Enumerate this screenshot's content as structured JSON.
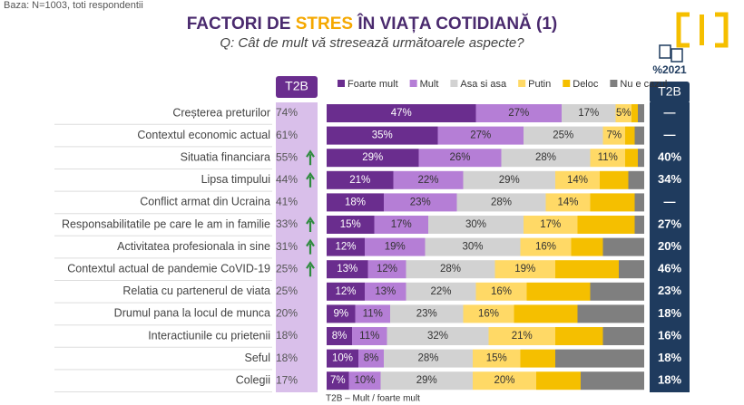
{
  "chart_data": {
    "type": "stacked-bar-horizontal",
    "base_note": "Baza: N=1003, toti respondentii",
    "title_parts": [
      "FACTORI DE ",
      "STRES",
      " ÎN VIAȚA COTIDIANĂ (1)"
    ],
    "title_highlight": 1,
    "subtitle": "Q: Cât de mult vă stresează următoarele aspecte?",
    "footnote": "T2B – Mult / foarte mult",
    "xlim": [
      0,
      100
    ],
    "categories": [
      "Creșterea preturilor",
      "Contextul economic actual",
      "Situatia financiara",
      "Lipsa timpului",
      "Conflict armat din Ucraina",
      "Responsabilitatile pe care le am in familie",
      "Activitatea profesionala in sine",
      "Contextul actual de pandemie CoVID-19",
      "Relatia cu partenerul de viata",
      "Drumul pana la locul de munca",
      "Interactiunile cu prietenii",
      "Seful",
      "Colegii"
    ],
    "series": [
      {
        "name": "Foarte mult",
        "color": "#6a2d8e",
        "text_color": "#ffffff",
        "values": [
          47,
          35,
          29,
          21,
          18,
          15,
          12,
          13,
          12,
          9,
          8,
          10,
          7
        ],
        "value_labels": [
          "47%",
          "35%",
          "29%",
          "21%",
          "18%",
          "15%",
          "12%",
          "13%",
          "12%",
          "9%",
          "8%",
          "10%",
          "7%"
        ]
      },
      {
        "name": "Mult",
        "color": "#b57ed6",
        "text_color": "#333333",
        "values": [
          27,
          27,
          26,
          22,
          23,
          17,
          19,
          12,
          13,
          11,
          11,
          8,
          10
        ],
        "value_labels": [
          "27%",
          "27%",
          "26%",
          "22%",
          "23%",
          "17%",
          "19%",
          "12%",
          "13%",
          "11%",
          "11%",
          "8%",
          "10%"
        ]
      },
      {
        "name": "Asa si asa",
        "color": "#d2d2d2",
        "text_color": "#333333",
        "values": [
          17,
          25,
          28,
          29,
          28,
          30,
          30,
          28,
          22,
          23,
          32,
          28,
          29
        ],
        "value_labels": [
          "17%",
          "25%",
          "28%",
          "29%",
          "28%",
          "30%",
          "30%",
          "28%",
          "22%",
          "23%",
          "32%",
          "28%",
          "29%"
        ]
      },
      {
        "name": "Putin",
        "color": "#ffd966",
        "text_color": "#333333",
        "values": [
          5,
          7,
          11,
          14,
          14,
          17,
          16,
          19,
          16,
          16,
          21,
          15,
          20
        ],
        "value_labels": [
          "5%",
          "7%",
          "11%",
          "14%",
          "14%",
          "17%",
          "16%",
          "19%",
          "16%",
          "16%",
          "21%",
          "15%",
          "20%"
        ]
      },
      {
        "name": "Deloc",
        "color": "#f5bf00",
        "text_color": "#333333",
        "values": [
          2,
          3,
          4,
          9,
          14,
          18,
          10,
          20,
          20,
          20,
          15,
          11,
          14
        ],
        "value_labels": [
          null,
          null,
          null,
          null,
          null,
          null,
          null,
          null,
          null,
          null,
          null,
          null,
          null
        ]
      },
      {
        "name": "Nu e cazul",
        "color": "#7f7f7f",
        "text_color": "#ffffff",
        "values": [
          2,
          3,
          2,
          5,
          3,
          3,
          13,
          8,
          17,
          21,
          13,
          28,
          20
        ],
        "value_labels": [
          null,
          null,
          null,
          null,
          null,
          null,
          null,
          null,
          null,
          null,
          null,
          null,
          null
        ]
      }
    ],
    "t2b": {
      "header": "T2B",
      "values": [
        74,
        61,
        55,
        44,
        41,
        33,
        31,
        25,
        25,
        20,
        18,
        18,
        17
      ],
      "value_labels": [
        "74%",
        "61%",
        "55%",
        "44%",
        "41%",
        "33%",
        "31%",
        "25%",
        "25%",
        "20%",
        "18%",
        "18%",
        "17%"
      ],
      "trend_up": [
        false,
        false,
        true,
        true,
        false,
        true,
        true,
        true,
        false,
        false,
        false,
        false,
        false
      ]
    },
    "t2b_2021": {
      "year_label": "%2021",
      "header": "T2B",
      "values": [
        null,
        null,
        40,
        34,
        null,
        27,
        20,
        46,
        23,
        18,
        16,
        18,
        18
      ],
      "value_labels": [
        "—",
        "—",
        "40%",
        "34%",
        "—",
        "27%",
        "20%",
        "46%",
        "23%",
        "18%",
        "16%",
        "18%",
        "18%"
      ]
    }
  }
}
